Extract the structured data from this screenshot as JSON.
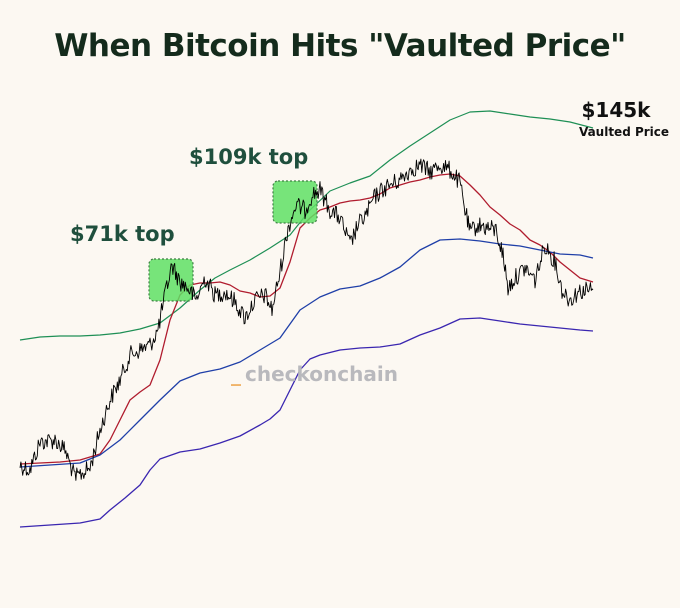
{
  "title": "When Bitcoin Hits \"Vaulted Price\"",
  "chart_data": {
    "type": "line",
    "title": "When Bitcoin Hits \"Vaulted Price\"",
    "xlabel": "",
    "ylabel": "",
    "grid": false,
    "legend": "none",
    "y_scale": "log",
    "series": [
      {
        "color": "#1e8f55",
        "note_label": "$145k",
        "note_sublabel": "Vaulted Price"
      },
      {
        "color": "#b01c2e"
      },
      {
        "color": "#1f3fa8"
      },
      {
        "color": "#3a26b0"
      },
      {
        "color": "#000000"
      }
    ],
    "annotations": [
      {
        "label": "$71k top",
        "highlight_color": "#5fe065"
      },
      {
        "label": "$109k top",
        "highlight_color": "#5fe065"
      }
    ],
    "watermark": {
      "prefix": "_",
      "text": "checkonchain"
    }
  }
}
